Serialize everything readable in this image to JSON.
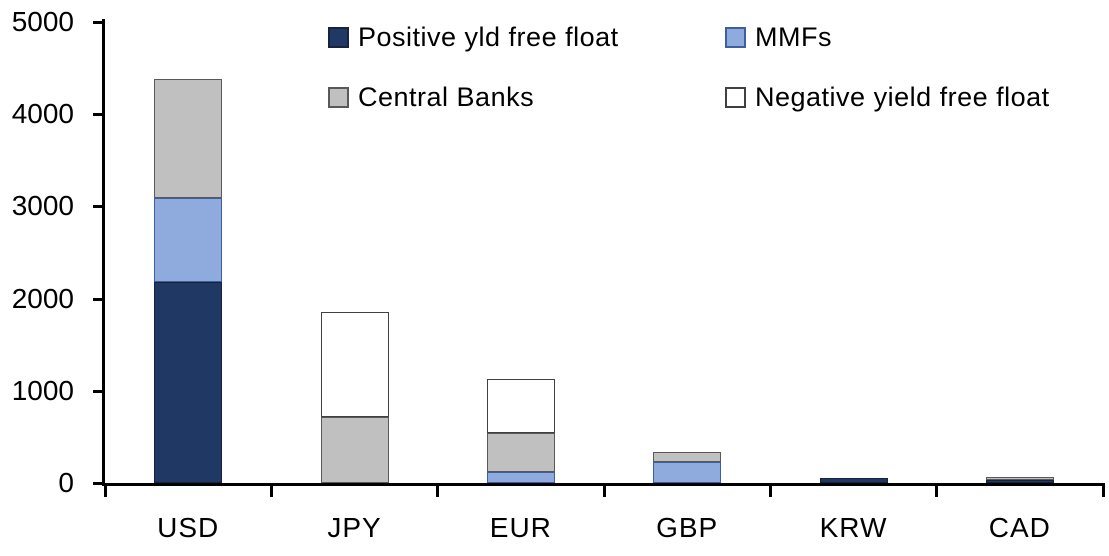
{
  "chart_data": {
    "type": "bar",
    "stacked": true,
    "title": "",
    "xlabel": "",
    "ylabel": "",
    "categories": [
      "USD",
      "JPY",
      "EUR",
      "GBP",
      "KRW",
      "CAD"
    ],
    "series": [
      {
        "name": "Positive yld free float",
        "fill": "#1F3864",
        "border": "#17233B",
        "values": [
          2175,
          0,
          0,
          0,
          55,
          30
        ]
      },
      {
        "name": "MMFs",
        "fill": "#8FAADC",
        "border": "#3E5F9E",
        "values": [
          920,
          0,
          115,
          225,
          0,
          0
        ]
      },
      {
        "name": "Central Banks",
        "fill": "#C0C0C0",
        "border": "#595959",
        "values": [
          1285,
          715,
          430,
          115,
          0,
          40
        ]
      },
      {
        "name": "Negative yield free float",
        "fill": "#FFFFFF",
        "border": "#404040",
        "values": [
          0,
          1135,
          580,
          0,
          0,
          0
        ]
      }
    ],
    "totals": [
      4380,
      1850,
      1125,
      340,
      55,
      70
    ],
    "ylim": [
      0,
      5000
    ],
    "y_ticks": [
      0,
      1000,
      2000,
      3000,
      4000,
      5000
    ],
    "grid": false,
    "legend_position": "top-inside",
    "legend_rows": [
      [
        "Positive yld free float",
        "MMFs"
      ],
      [
        "Central Banks",
        "Negative yield free float"
      ]
    ]
  },
  "colors": {
    "axis": "#000000",
    "text": "#000000",
    "background": "#FFFFFF"
  }
}
